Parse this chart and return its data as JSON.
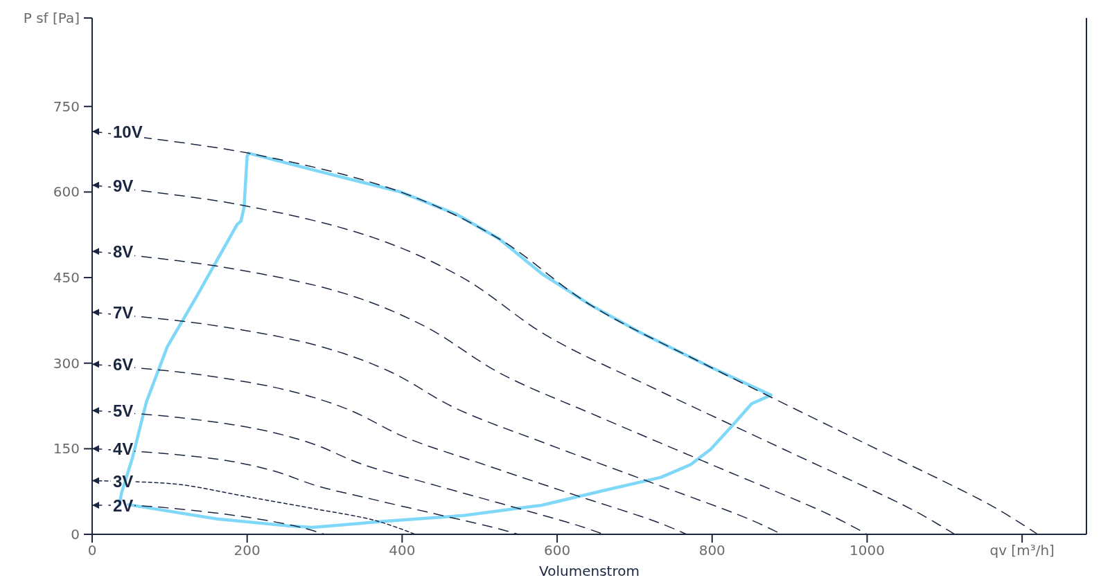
{
  "chart_data": {
    "type": "line",
    "xlabel": "Volumenstrom",
    "xlim": [
      0,
      1283
    ],
    "ylim": [
      0,
      905
    ],
    "xticks": [
      0,
      200,
      400,
      600,
      800,
      1000,
      {
        "value": 1200,
        "label": "qv [m³/h]"
      }
    ],
    "yticks": [
      0,
      150,
      300,
      450,
      600,
      750,
      {
        "value": 905,
        "label": "P sf [Pa]"
      }
    ],
    "grid": false,
    "legend": "left",
    "marker": "none",
    "series": [
      {
        "name": "10V",
        "color": "#1a2540",
        "line_style": "dashed",
        "x": [
          0,
          202,
          398,
          525,
          643,
          798,
          980,
          1162,
          1220
        ],
        "values": [
          706,
          668,
          600,
          518,
          402,
          293,
          171,
          49,
          0
        ]
      },
      {
        "name": "9V",
        "color": "#1a2540",
        "line_style": "dashed",
        "x": [
          0,
          185,
          363,
          479,
          587,
          728,
          894,
          1060,
          1113
        ],
        "values": [
          612,
          579,
          520,
          449,
          348,
          254,
          148,
          42,
          0
        ]
      },
      {
        "name": "8V",
        "color": "#1a2540",
        "line_style": "dashed",
        "x": [
          0,
          166,
          326,
          430,
          527,
          654,
          803,
          952,
          1000
        ],
        "values": [
          496,
          469,
          422,
          364,
          282,
          206,
          120,
          34,
          0
        ]
      },
      {
        "name": "7V",
        "color": "#1a2540",
        "line_style": "dashed",
        "x": [
          0,
          148,
          290,
          383,
          469,
          582,
          715,
          847,
          890
        ],
        "values": [
          389,
          368,
          331,
          286,
          221,
          161,
          94,
          27,
          0
        ]
      },
      {
        "name": "6V",
        "color": "#1a2540",
        "line_style": "dashed",
        "x": [
          0,
          127,
          250,
          330,
          404,
          502,
          616,
          730,
          767
        ],
        "values": [
          298,
          282,
          253,
          219,
          170,
          124,
          72,
          21,
          0
        ]
      },
      {
        "name": "5V",
        "color": "#1a2540",
        "line_style": "dashed",
        "x": [
          0,
          110,
          215,
          284,
          348,
          432,
          530,
          628,
          660
        ],
        "values": [
          217,
          205,
          184,
          159,
          123,
          90,
          53,
          15,
          0
        ]
      },
      {
        "name": "4V",
        "color": "#1a2540",
        "line_style": "dashed",
        "x": [
          0,
          91,
          179,
          237,
          290,
          360,
          442,
          524,
          550
        ],
        "values": [
          150,
          142,
          128,
          110,
          85,
          62,
          36,
          10,
          0
        ]
      },
      {
        "name": "3V",
        "color": "#1a2540",
        "line_style": "dotted",
        "x": [
          0,
          60,
          115,
          200,
          286,
          366,
          417
        ],
        "values": [
          94,
          92,
          87,
          66,
          45,
          24,
          0
        ]
      },
      {
        "name": "2V",
        "color": "#1a2540",
        "line_style": "dashed",
        "x": [
          0,
          60,
          100,
          200,
          270,
          300
        ],
        "values": [
          51,
          50,
          46,
          30,
          12,
          0
        ]
      },
      {
        "color": "#7fd8f7",
        "line_style": "solid",
        "x": [
          47,
          161,
          252,
          284,
          370,
          480,
          580,
          661,
          734,
          772,
          798,
          825,
          851,
          876,
          798,
          707,
          643,
          580,
          525,
          470,
          398,
          270,
          202,
          200,
          196,
          192,
          187,
          134,
          97,
          70,
          52,
          38,
          35
        ],
        "values": [
          52,
          27,
          15,
          12,
          22,
          33,
          51,
          77,
          100,
          122,
          149,
          189,
          229,
          244,
          293,
          354,
          402,
          457,
          518,
          561,
          600,
          644,
          668,
          663,
          573,
          549,
          543,
          415,
          329,
          232,
          134,
          73,
          51
        ]
      }
    ]
  }
}
